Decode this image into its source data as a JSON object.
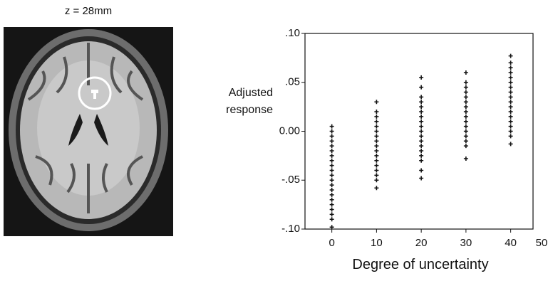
{
  "image_label": "z = 28mm",
  "chart_data": {
    "type": "scatter",
    "ylabel": [
      "Adjusted",
      "response"
    ],
    "xlabel": "Degree of uncertainty",
    "xlim": [
      -6,
      45
    ],
    "xticks": [
      0,
      10,
      20,
      30,
      40,
      50
    ],
    "ylim": [
      -0.1,
      0.1
    ],
    "yticks": [
      {
        "value": 0.1,
        "label": ".10"
      },
      {
        "value": 0.05,
        "label": ".05"
      },
      {
        "value": 0,
        "label": "0.00"
      },
      {
        "value": -0.05,
        "label": "-.05"
      },
      {
        "value": -0.1,
        "label": "-.10"
      }
    ],
    "color": "#111111",
    "x": [
      0,
      0,
      0,
      0,
      0,
      0,
      0,
      0,
      0,
      0,
      0,
      0,
      0,
      0,
      0,
      0,
      0,
      0,
      0,
      0,
      0,
      10,
      10,
      10,
      10,
      10,
      10,
      10,
      10,
      10,
      10,
      10,
      10,
      10,
      10,
      10,
      10,
      10,
      20,
      20,
      20,
      20,
      20,
      20,
      20,
      20,
      20,
      20,
      20,
      20,
      20,
      20,
      20,
      20,
      20,
      20,
      30,
      30,
      30,
      30,
      30,
      30,
      30,
      30,
      30,
      30,
      30,
      30,
      30,
      30,
      30,
      30,
      40,
      40,
      40,
      40,
      40,
      40,
      40,
      40,
      40,
      40,
      40,
      40,
      40,
      40,
      40,
      40,
      40,
      40
    ],
    "y": [
      0.005,
      0,
      -0.005,
      -0.01,
      -0.015,
      -0.02,
      -0.025,
      -0.03,
      -0.035,
      -0.04,
      -0.045,
      -0.05,
      -0.055,
      -0.06,
      -0.065,
      -0.07,
      -0.075,
      -0.08,
      -0.085,
      -0.09,
      -0.098,
      0.03,
      0.02,
      0.015,
      0.01,
      0.005,
      0,
      -0.005,
      -0.01,
      -0.015,
      -0.02,
      -0.025,
      -0.03,
      -0.035,
      -0.04,
      -0.045,
      -0.05,
      -0.058,
      0.055,
      0.045,
      0.035,
      0.03,
      0.025,
      0.02,
      0.015,
      0.01,
      0.005,
      0,
      -0.005,
      -0.01,
      -0.015,
      -0.02,
      -0.025,
      -0.03,
      -0.04,
      -0.048,
      0.06,
      0.05,
      0.045,
      0.04,
      0.035,
      0.03,
      0.025,
      0.02,
      0.015,
      0.01,
      0.005,
      0,
      -0.005,
      -0.01,
      -0.015,
      -0.028,
      0.077,
      0.07,
      0.065,
      0.06,
      0.055,
      0.05,
      0.045,
      0.04,
      0.035,
      0.03,
      0.025,
      0.02,
      0.015,
      0.01,
      0.005,
      0,
      -0.005,
      -0.013
    ]
  }
}
